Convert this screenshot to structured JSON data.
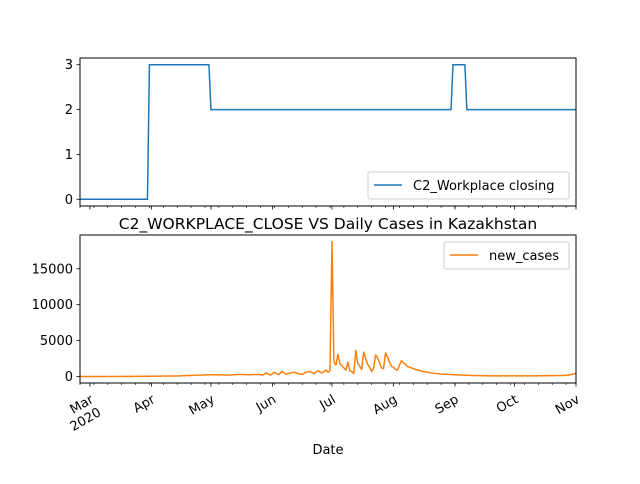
{
  "chart_data": [
    {
      "type": "line",
      "title": "",
      "xlabel": "",
      "ylabel": "",
      "ylim": [
        -0.15,
        3.15
      ],
      "yticks": [
        0,
        1,
        2,
        3
      ],
      "ytick_labels": [
        "0",
        "1",
        "2",
        "3"
      ],
      "legend_position": "lower-right",
      "grid": false,
      "series": [
        {
          "name": "C2_Workplace closing",
          "color": "#1f77b4",
          "x": [
            "2020-02-25",
            "2020-03-30",
            "2020-03-31",
            "2020-04-30",
            "2020-05-01",
            "2020-08-30",
            "2020-08-31",
            "2020-09-06",
            "2020-09-07",
            "2020-11-01"
          ],
          "values": [
            0,
            0,
            3,
            3,
            2,
            2,
            3,
            3,
            2,
            2
          ]
        }
      ]
    },
    {
      "type": "line",
      "title": "C2_WORKPLACE_CLOSE VS Daily Cases in Kazakhstan",
      "xlabel": "Date",
      "ylabel": "",
      "ylim": [
        -900,
        19700
      ],
      "yticks": [
        0,
        5000,
        10000,
        15000
      ],
      "ytick_labels": [
        "0",
        "5000",
        "10000",
        "15000"
      ],
      "legend_position": "top-right",
      "grid": false,
      "xlim": [
        "2020-02-25",
        "2020-11-01"
      ],
      "xtick_labels": [
        "Mar\n2020",
        "Apr",
        "May",
        "Jun",
        "Jul",
        "Aug",
        "Sep",
        "Oct",
        "Nov"
      ],
      "series": [
        {
          "name": "new_cases",
          "color": "#ff7f0e",
          "x": [
            "2020-02-25",
            "2020-03-10",
            "2020-03-20",
            "2020-03-31",
            "2020-04-05",
            "2020-04-10",
            "2020-04-15",
            "2020-04-20",
            "2020-04-25",
            "2020-04-30",
            "2020-05-05",
            "2020-05-10",
            "2020-05-15",
            "2020-05-20",
            "2020-05-25",
            "2020-05-27",
            "2020-05-29",
            "2020-05-31",
            "2020-06-02",
            "2020-06-04",
            "2020-06-06",
            "2020-06-08",
            "2020-06-10",
            "2020-06-12",
            "2020-06-14",
            "2020-06-16",
            "2020-06-18",
            "2020-06-20",
            "2020-06-22",
            "2020-06-24",
            "2020-06-26",
            "2020-06-28",
            "2020-06-29",
            "2020-06-30",
            "2020-07-01",
            "2020-07-02",
            "2020-07-03",
            "2020-07-04",
            "2020-07-05",
            "2020-07-06",
            "2020-07-07",
            "2020-07-08",
            "2020-07-09",
            "2020-07-10",
            "2020-07-11",
            "2020-07-12",
            "2020-07-13",
            "2020-07-14",
            "2020-07-15",
            "2020-07-16",
            "2020-07-17",
            "2020-07-18",
            "2020-07-19",
            "2020-07-20",
            "2020-07-21",
            "2020-07-22",
            "2020-07-23",
            "2020-07-24",
            "2020-07-25",
            "2020-07-26",
            "2020-07-27",
            "2020-07-28",
            "2020-07-29",
            "2020-07-30",
            "2020-07-31",
            "2020-08-01",
            "2020-08-02",
            "2020-08-03",
            "2020-08-05",
            "2020-08-08",
            "2020-08-12",
            "2020-08-16",
            "2020-08-20",
            "2020-08-25",
            "2020-09-01",
            "2020-09-10",
            "2020-09-20",
            "2020-10-01",
            "2020-10-10",
            "2020-10-20",
            "2020-10-25",
            "2020-10-28",
            "2020-10-30",
            "2020-11-01"
          ],
          "values": [
            0,
            10,
            20,
            40,
            60,
            80,
            100,
            150,
            200,
            250,
            250,
            200,
            300,
            250,
            300,
            200,
            500,
            200,
            600,
            250,
            700,
            300,
            500,
            600,
            400,
            300,
            600,
            700,
            400,
            800,
            500,
            900,
            600,
            800,
            18800,
            2000,
            1600,
            3100,
            1800,
            1500,
            1200,
            900,
            2000,
            800,
            700,
            400,
            3600,
            1900,
            1400,
            1000,
            3400,
            2500,
            1700,
            1300,
            700,
            1200,
            3000,
            2600,
            1900,
            1200,
            1100,
            3300,
            2700,
            2000,
            1400,
            1300,
            1000,
            900,
            2200,
            1400,
            1000,
            700,
            500,
            350,
            250,
            150,
            100,
            100,
            100,
            120,
            150,
            200,
            300,
            450
          ]
        }
      ]
    }
  ]
}
